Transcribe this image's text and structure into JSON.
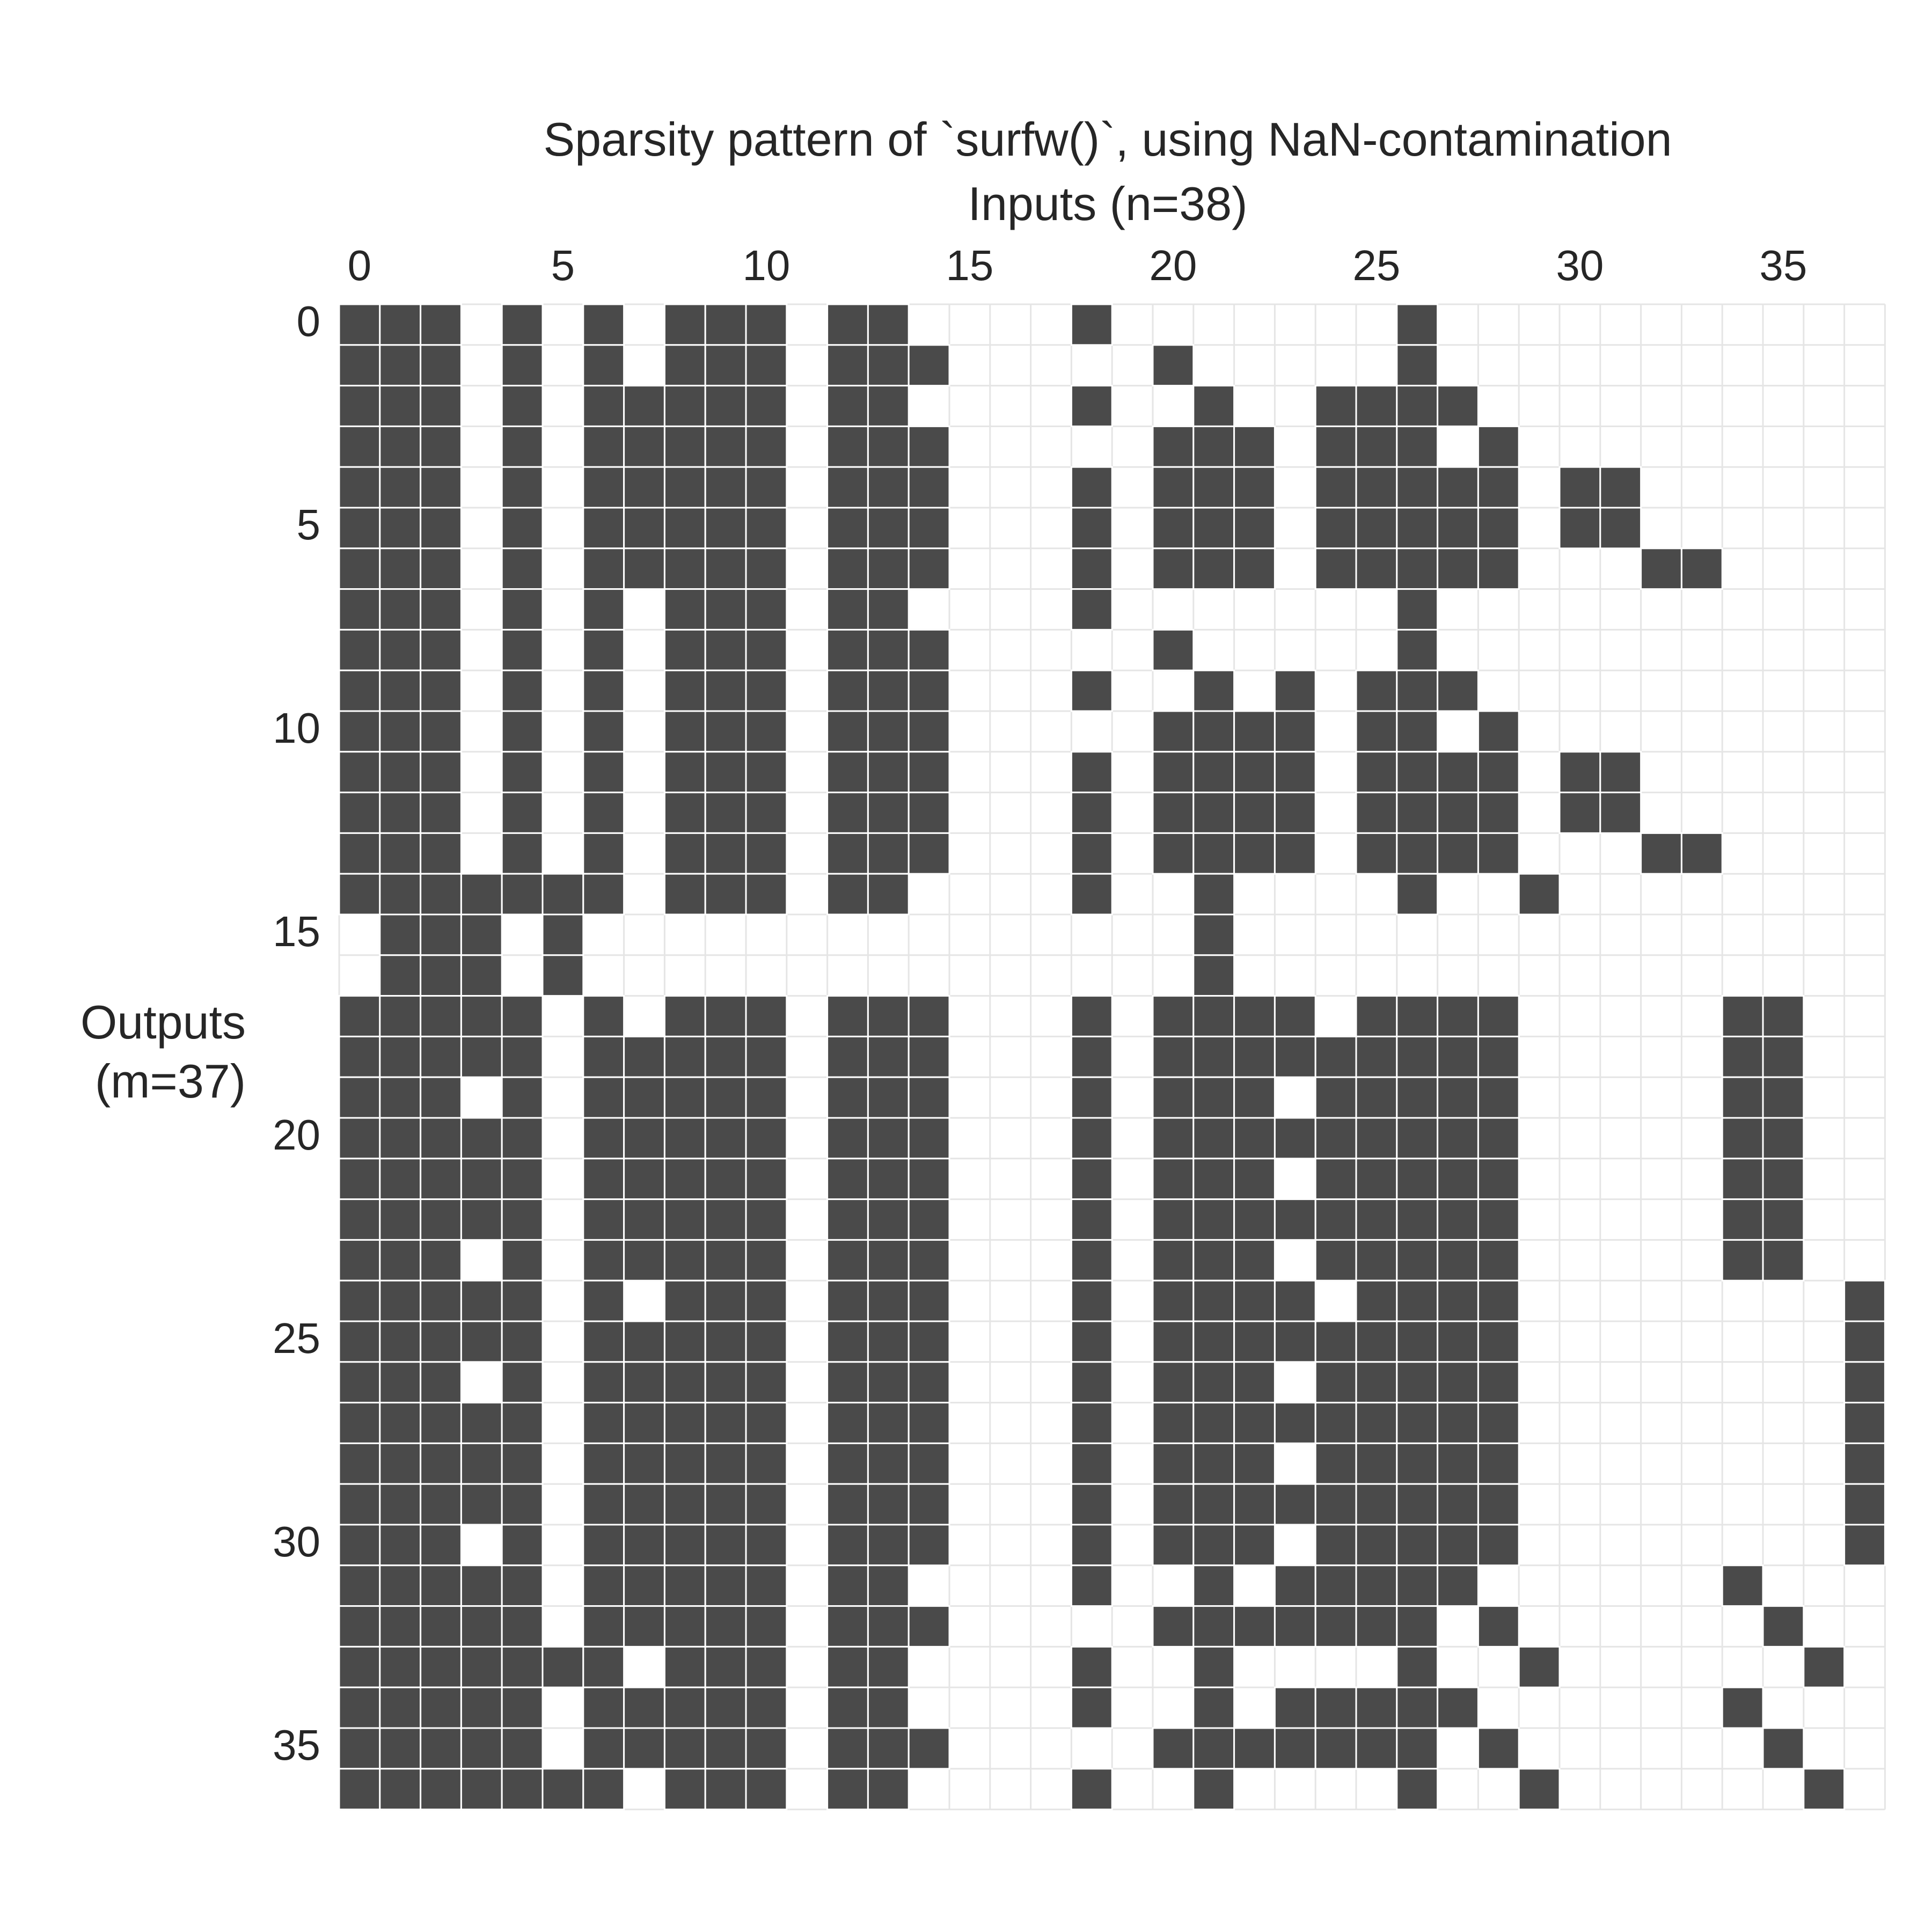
{
  "chart_data": {
    "type": "heatmap",
    "title": "Sparsity pattern of `surfw()`, using NaN-contamination",
    "xlabel": "Inputs (n=38)",
    "ylabel_lines": [
      "Outputs",
      "(m=37)"
    ],
    "n_cols": 38,
    "n_rows": 37,
    "x_ticks": [
      0,
      5,
      10,
      15,
      20,
      25,
      30,
      35
    ],
    "y_ticks": [
      0,
      5,
      10,
      15,
      20,
      25,
      30,
      35
    ],
    "x_tick_position": "top",
    "grid": true,
    "colors": {
      "filled": "#4a4a4a",
      "empty": "#ffffff",
      "grid": "#e5e5e5",
      "text": "#262626"
    },
    "rows": [
      [
        0,
        1,
        2,
        4,
        6,
        8,
        9,
        10,
        12,
        13,
        18,
        26
      ],
      [
        0,
        1,
        2,
        4,
        6,
        8,
        9,
        10,
        12,
        13,
        14,
        20,
        26
      ],
      [
        0,
        1,
        2,
        4,
        6,
        7,
        8,
        9,
        10,
        12,
        13,
        18,
        21,
        24,
        25,
        26,
        27
      ],
      [
        0,
        1,
        2,
        4,
        6,
        7,
        8,
        9,
        10,
        12,
        13,
        14,
        20,
        21,
        22,
        24,
        25,
        26,
        28
      ],
      [
        0,
        1,
        2,
        4,
        6,
        7,
        8,
        9,
        10,
        12,
        13,
        14,
        18,
        20,
        21,
        22,
        24,
        25,
        26,
        27,
        28,
        30,
        31
      ],
      [
        0,
        1,
        2,
        4,
        6,
        7,
        8,
        9,
        10,
        12,
        13,
        14,
        18,
        20,
        21,
        22,
        24,
        25,
        26,
        27,
        28,
        30,
        31
      ],
      [
        0,
        1,
        2,
        4,
        6,
        7,
        8,
        9,
        10,
        12,
        13,
        14,
        18,
        20,
        21,
        22,
        24,
        25,
        26,
        27,
        28,
        32,
        33
      ],
      [
        0,
        1,
        2,
        4,
        6,
        8,
        9,
        10,
        12,
        13,
        18,
        26
      ],
      [
        0,
        1,
        2,
        4,
        6,
        8,
        9,
        10,
        12,
        13,
        14,
        20,
        26
      ],
      [
        0,
        1,
        2,
        4,
        6,
        8,
        9,
        10,
        12,
        13,
        14,
        18,
        21,
        23,
        25,
        26,
        27
      ],
      [
        0,
        1,
        2,
        4,
        6,
        8,
        9,
        10,
        12,
        13,
        14,
        20,
        21,
        22,
        23,
        25,
        26,
        28
      ],
      [
        0,
        1,
        2,
        4,
        6,
        8,
        9,
        10,
        12,
        13,
        14,
        18,
        20,
        21,
        22,
        23,
        25,
        26,
        27,
        28,
        30,
        31
      ],
      [
        0,
        1,
        2,
        4,
        6,
        8,
        9,
        10,
        12,
        13,
        14,
        18,
        20,
        21,
        22,
        23,
        25,
        26,
        27,
        28,
        30,
        31
      ],
      [
        0,
        1,
        2,
        4,
        6,
        8,
        9,
        10,
        12,
        13,
        14,
        18,
        20,
        21,
        22,
        23,
        25,
        26,
        27,
        28,
        32,
        33
      ],
      [
        0,
        1,
        2,
        3,
        4,
        5,
        6,
        8,
        9,
        10,
        12,
        13,
        18,
        21,
        26,
        29
      ],
      [
        1,
        2,
        3,
        5,
        21
      ],
      [
        1,
        2,
        3,
        5,
        21
      ],
      [
        0,
        1,
        2,
        3,
        4,
        6,
        8,
        9,
        10,
        12,
        13,
        14,
        18,
        20,
        21,
        22,
        23,
        25,
        26,
        27,
        28,
        34,
        35
      ],
      [
        0,
        1,
        2,
        3,
        4,
        6,
        7,
        8,
        9,
        10,
        12,
        13,
        14,
        18,
        20,
        21,
        22,
        23,
        24,
        25,
        26,
        27,
        28,
        34,
        35
      ],
      [
        0,
        1,
        2,
        4,
        6,
        7,
        8,
        9,
        10,
        12,
        13,
        14,
        18,
        20,
        21,
        22,
        24,
        25,
        26,
        27,
        28,
        34,
        35
      ],
      [
        0,
        1,
        2,
        3,
        4,
        6,
        7,
        8,
        9,
        10,
        12,
        13,
        14,
        18,
        20,
        21,
        22,
        23,
        24,
        25,
        26,
        27,
        28,
        34,
        35
      ],
      [
        0,
        1,
        2,
        3,
        4,
        6,
        7,
        8,
        9,
        10,
        12,
        13,
        14,
        18,
        20,
        21,
        22,
        24,
        25,
        26,
        27,
        28,
        34,
        35
      ],
      [
        0,
        1,
        2,
        3,
        4,
        6,
        7,
        8,
        9,
        10,
        12,
        13,
        14,
        18,
        20,
        21,
        22,
        23,
        24,
        25,
        26,
        27,
        28,
        34,
        35
      ],
      [
        0,
        1,
        2,
        4,
        6,
        7,
        8,
        9,
        10,
        12,
        13,
        14,
        18,
        20,
        21,
        22,
        24,
        25,
        26,
        27,
        28,
        34,
        35
      ],
      [
        0,
        1,
        2,
        3,
        4,
        6,
        8,
        9,
        10,
        12,
        13,
        14,
        18,
        20,
        21,
        22,
        23,
        25,
        26,
        27,
        28,
        37
      ],
      [
        0,
        1,
        2,
        3,
        4,
        6,
        7,
        8,
        9,
        10,
        12,
        13,
        14,
        18,
        20,
        21,
        22,
        23,
        24,
        25,
        26,
        27,
        28,
        37
      ],
      [
        0,
        1,
        2,
        4,
        6,
        7,
        8,
        9,
        10,
        12,
        13,
        14,
        18,
        20,
        21,
        22,
        24,
        25,
        26,
        27,
        28,
        37
      ],
      [
        0,
        1,
        2,
        3,
        4,
        6,
        7,
        8,
        9,
        10,
        12,
        13,
        14,
        18,
        20,
        21,
        22,
        23,
        24,
        25,
        26,
        27,
        28,
        37
      ],
      [
        0,
        1,
        2,
        3,
        4,
        6,
        7,
        8,
        9,
        10,
        12,
        13,
        14,
        18,
        20,
        21,
        22,
        24,
        25,
        26,
        27,
        28,
        37
      ],
      [
        0,
        1,
        2,
        3,
        4,
        6,
        7,
        8,
        9,
        10,
        12,
        13,
        14,
        18,
        20,
        21,
        22,
        23,
        24,
        25,
        26,
        27,
        28,
        37
      ],
      [
        0,
        1,
        2,
        4,
        6,
        7,
        8,
        9,
        10,
        12,
        13,
        14,
        18,
        20,
        21,
        22,
        24,
        25,
        26,
        27,
        28,
        37
      ],
      [
        0,
        1,
        2,
        3,
        4,
        6,
        7,
        8,
        9,
        10,
        12,
        13,
        18,
        21,
        23,
        24,
        25,
        26,
        27,
        34
      ],
      [
        0,
        1,
        2,
        3,
        4,
        6,
        7,
        8,
        9,
        10,
        12,
        13,
        14,
        20,
        21,
        22,
        23,
        24,
        25,
        26,
        28,
        35
      ],
      [
        0,
        1,
        2,
        3,
        4,
        5,
        6,
        8,
        9,
        10,
        12,
        13,
        18,
        21,
        26,
        29,
        36
      ],
      [
        0,
        1,
        2,
        3,
        4,
        6,
        7,
        8,
        9,
        10,
        12,
        13,
        18,
        21,
        23,
        24,
        25,
        26,
        27,
        34
      ],
      [
        0,
        1,
        2,
        3,
        4,
        6,
        7,
        8,
        9,
        10,
        12,
        13,
        14,
        20,
        21,
        22,
        23,
        24,
        25,
        26,
        28,
        35
      ],
      [
        0,
        1,
        2,
        3,
        4,
        5,
        6,
        8,
        9,
        10,
        12,
        13,
        18,
        21,
        26,
        29,
        36
      ]
    ]
  }
}
